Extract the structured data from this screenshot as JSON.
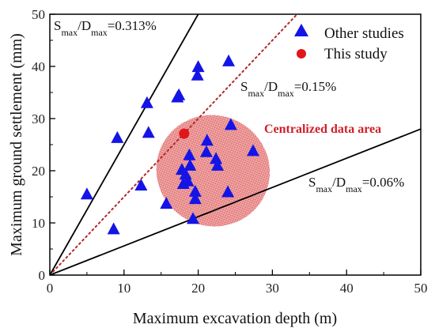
{
  "chart_data": {
    "type": "scatter",
    "xlabel": "Maximum excavation depth (m)",
    "ylabel": "Maximum ground settlement (mm)",
    "xlim": [
      0,
      50
    ],
    "ylim": [
      0,
      50
    ],
    "xticks": [
      0,
      10,
      20,
      30,
      40,
      50
    ],
    "yticks": [
      0,
      10,
      20,
      30,
      40,
      50
    ],
    "grid": false,
    "legend_position": "top-right",
    "series": [
      {
        "name": "Other studies",
        "marker": "triangle",
        "color": "#1414e6",
        "points": [
          [
            5.0,
            15.5
          ],
          [
            8.6,
            8.8
          ],
          [
            9.1,
            26.3
          ],
          [
            12.3,
            17.2
          ],
          [
            13.1,
            33.0
          ],
          [
            13.3,
            27.3
          ],
          [
            15.7,
            13.7
          ],
          [
            17.2,
            34.1
          ],
          [
            17.4,
            34.5
          ],
          [
            17.8,
            20.2
          ],
          [
            18.0,
            17.5
          ],
          [
            18.3,
            19.3
          ],
          [
            18.6,
            18.0
          ],
          [
            18.9,
            21.0
          ],
          [
            18.8,
            23.0
          ],
          [
            19.3,
            10.8
          ],
          [
            19.6,
            14.6
          ],
          [
            19.6,
            16.0
          ],
          [
            19.9,
            38.3
          ],
          [
            20.0,
            39.9
          ],
          [
            21.1,
            23.6
          ],
          [
            21.2,
            25.8
          ],
          [
            22.4,
            22.3
          ],
          [
            22.6,
            21.0
          ],
          [
            24.0,
            15.9
          ],
          [
            24.1,
            41.0
          ],
          [
            24.4,
            28.8
          ],
          [
            27.4,
            23.8
          ]
        ]
      },
      {
        "name": "This study",
        "marker": "circle",
        "color": "#e0161b",
        "points": [
          [
            18.1,
            27.1
          ]
        ]
      }
    ],
    "reference_lines": [
      {
        "slope": 2.5,
        "label_sub": "max",
        "label_text": "=0.313%",
        "style": "solid"
      },
      {
        "slope": 1.5,
        "label_sub": "max",
        "label_text": "=0.15%",
        "style": "dotted",
        "color": "#b0282a"
      },
      {
        "slope": 0.56,
        "label_sub": "max",
        "label_text": "=0.06%",
        "style": "solid"
      }
    ],
    "annotations": [
      {
        "text": "Centralized data area",
        "color": "#d0202a"
      }
    ],
    "highlight_ellipse": {
      "cx": 22.0,
      "cy": 20.0,
      "rx": 7.7,
      "ry": 10.6,
      "rotation": 28,
      "color": "#d0202a"
    }
  },
  "ref_label_prefix": "S",
  "ref_label_mid": "/D"
}
